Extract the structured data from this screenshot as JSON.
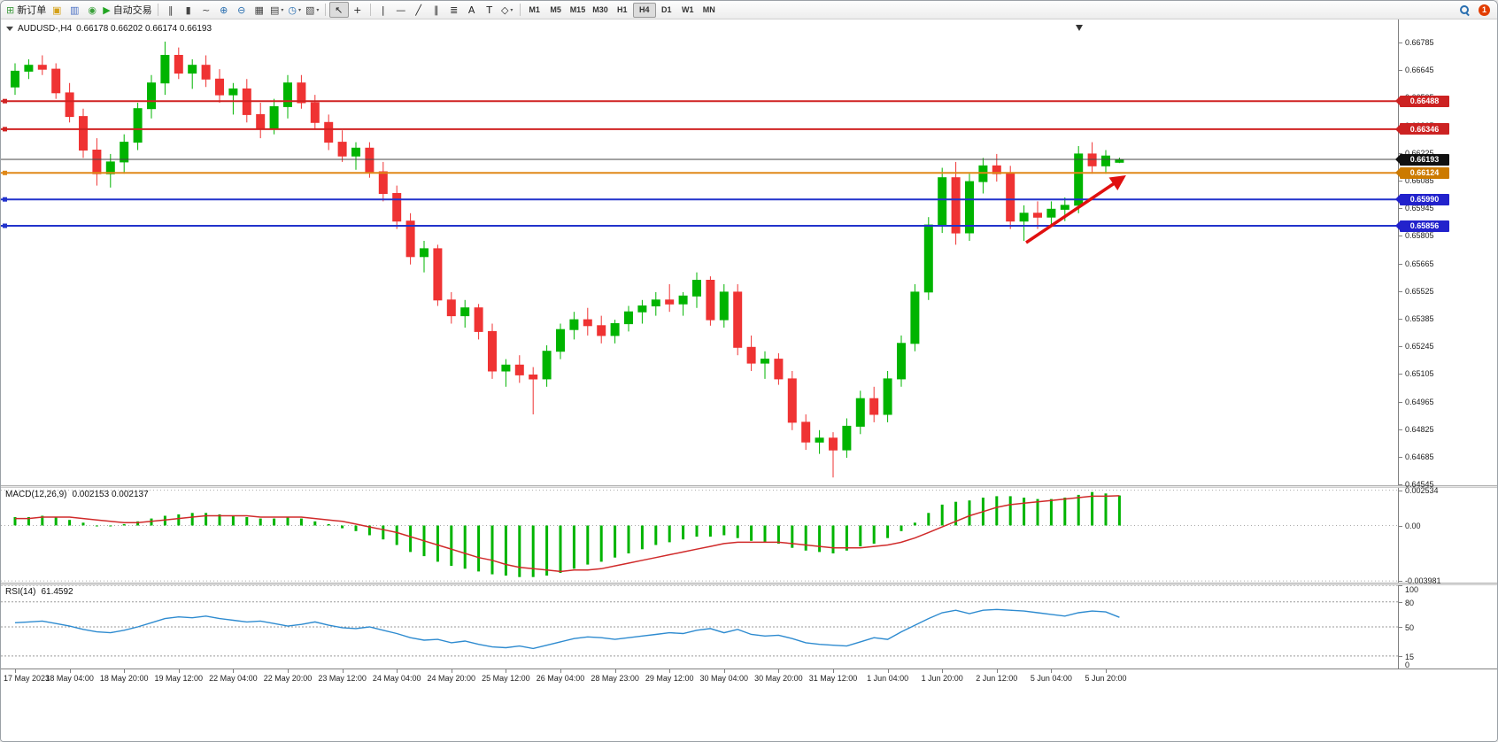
{
  "toolbar": {
    "groups": [
      {
        "items": [
          {
            "name": "new-order-button",
            "glyph": "⊞",
            "color": "#3f9b3f",
            "text": "新订单"
          },
          {
            "name": "profiles-button",
            "glyph": "▣",
            "color": "#d4a017"
          },
          {
            "name": "market-watch-button",
            "glyph": "▥",
            "color": "#4a6fc4"
          },
          {
            "name": "data-window-button",
            "glyph": "◉",
            "color": "#3aa03a"
          },
          {
            "name": "auto-trading-button",
            "glyph": "▶",
            "color": "#22a522",
            "text": "自动交易"
          }
        ]
      },
      {
        "items": [
          {
            "name": "bar-chart-button",
            "glyph": "‖",
            "color": "#444444"
          },
          {
            "name": "candlestick-chart-button",
            "glyph": "▮",
            "color": "#444444"
          },
          {
            "name": "line-chart-button",
            "glyph": "~",
            "color": "#444444"
          },
          {
            "name": "zoom-in-button",
            "glyph": "⊕",
            "color": "#2a6fb0"
          },
          {
            "name": "zoom-out-button",
            "glyph": "⊖",
            "color": "#2a6fb0"
          },
          {
            "name": "tile-windows-button",
            "glyph": "▦",
            "color": "#444444"
          },
          {
            "name": "auto-arrange-button",
            "glyph": "▤",
            "color": "#444444",
            "drop": true
          },
          {
            "name": "period-button",
            "glyph": "◷",
            "color": "#2a6fb0",
            "drop": true
          },
          {
            "name": "templates-button",
            "glyph": "▧",
            "color": "#444444",
            "drop": true
          }
        ]
      },
      {
        "items": [
          {
            "name": "cursor-button",
            "glyph": "↖",
            "color": "#222222",
            "active": true
          },
          {
            "name": "crosshair-button",
            "glyph": "+",
            "color": "#222222"
          }
        ]
      },
      {
        "items": [
          {
            "name": "vertical-line-button",
            "glyph": "|",
            "color": "#222222"
          },
          {
            "name": "horizontal-line-button",
            "glyph": "—",
            "color": "#222222"
          },
          {
            "name": "trendline-button",
            "glyph": "╱",
            "color": "#222222"
          },
          {
            "name": "channel-button",
            "glyph": "∥",
            "color": "#222222"
          },
          {
            "name": "fibonacci-button",
            "glyph": "≣",
            "color": "#222222"
          },
          {
            "name": "text-button",
            "glyph": "A",
            "color": "#222222"
          },
          {
            "name": "text-label-button",
            "glyph": "T",
            "color": "#222222"
          },
          {
            "name": "shapes-button",
            "glyph": "◇",
            "color": "#222222",
            "drop": true
          }
        ]
      },
      {
        "items": [
          {
            "name": "tf-m1-button",
            "tf": true,
            "text2": "M1"
          },
          {
            "name": "tf-m5-button",
            "tf": true,
            "text2": "M5"
          },
          {
            "name": "tf-m15-button",
            "tf": true,
            "text2": "M15"
          },
          {
            "name": "tf-m30-button",
            "tf": true,
            "text2": "M30"
          },
          {
            "name": "tf-h1-button",
            "tf": true,
            "text2": "H1"
          },
          {
            "name": "tf-h4-button",
            "tf": true,
            "text2": "H4",
            "active": true
          },
          {
            "name": "tf-d1-button",
            "tf": true,
            "text2": "D1"
          },
          {
            "name": "tf-w1-button",
            "tf": true,
            "text2": "W1"
          },
          {
            "name": "tf-mn-button",
            "tf": true,
            "text2": "MN"
          }
        ]
      }
    ],
    "notification_count": "1"
  },
  "chart": {
    "title_symbol": "AUDUSD-,H4",
    "title_ohlc": "0.66178 0.66202 0.66174 0.66193"
  },
  "indicators": {
    "macd": {
      "label": "MACD(12,26,9)",
      "values": "0.002153 0.002137"
    },
    "rsi": {
      "label": "RSI(14)",
      "values": "61.4592"
    }
  },
  "chart_data": {
    "type": "candlestick",
    "symbol": "AUDUSD-",
    "timeframe": "H4",
    "current_ohlc": {
      "open": "0.66178",
      "high": "0.66202",
      "low": "0.66174",
      "close": "0.66193"
    },
    "colors": {
      "bull": "#00B400",
      "bear": "#EF3333",
      "macd_hist": "#00B400",
      "macd_signal": "#D02A2A",
      "rsi_line": "#2E8BD0"
    },
    "x_start": 16,
    "x_step": 15.4,
    "body_width": 9,
    "shift_marker_x": 1218,
    "price_axis": {
      "min": 0.64541,
      "max": 0.66902,
      "ticks": [
        0.66785,
        0.66645,
        0.66505,
        0.66365,
        0.66225,
        0.66085,
        0.65945,
        0.65805,
        0.65665,
        0.65525,
        0.65385,
        0.65245,
        0.65105,
        0.64965,
        0.64825,
        0.64685,
        0.64545
      ]
    },
    "hlines": [
      {
        "price": 0.66488,
        "color": "#D02222",
        "width": 2,
        "badge": "0.66488",
        "badge_color": "#CC2222",
        "marker": true
      },
      {
        "price": 0.66346,
        "color": "#D02222",
        "width": 2,
        "badge": "0.66346",
        "badge_color": "#CC2222",
        "marker": true
      },
      {
        "price": 0.66193,
        "color": "#444444",
        "width": 1,
        "badge": "0.66193",
        "badge_color": "#111111",
        "marker": false
      },
      {
        "price": 0.66124,
        "color": "#E08818",
        "width": 2,
        "badge": "0.66124",
        "badge_color": "#CC7A00",
        "marker": true
      },
      {
        "price": 0.6599,
        "color": "#2233CC",
        "width": 2,
        "badge": "0.65990",
        "badge_color": "#2222CC",
        "marker": true
      },
      {
        "price": 0.65856,
        "color": "#2233CC",
        "width": 2,
        "badge": "0.65856",
        "badge_color": "#2222CC",
        "marker": true
      }
    ],
    "arrow": {
      "from": [
        1158,
        252
      ],
      "to": [
        1268,
        178
      ],
      "color": "#E01010",
      "width": 3.5
    },
    "candles": [
      [
        0.6656,
        0.6668,
        0.6652,
        0.6664
      ],
      [
        0.6664,
        0.667,
        0.666,
        0.6667
      ],
      [
        0.6667,
        0.6672,
        0.6662,
        0.6665
      ],
      [
        0.6665,
        0.6668,
        0.665,
        0.6653
      ],
      [
        0.6653,
        0.6658,
        0.6638,
        0.6641
      ],
      [
        0.6641,
        0.6645,
        0.662,
        0.6624
      ],
      [
        0.6624,
        0.663,
        0.6606,
        0.6612
      ],
      [
        0.6612,
        0.6622,
        0.6605,
        0.6618
      ],
      [
        0.6618,
        0.6632,
        0.6612,
        0.6628
      ],
      [
        0.6628,
        0.6648,
        0.6624,
        0.6645
      ],
      [
        0.6645,
        0.6662,
        0.664,
        0.6658
      ],
      [
        0.6658,
        0.6679,
        0.6652,
        0.6672
      ],
      [
        0.6672,
        0.6676,
        0.666,
        0.6663
      ],
      [
        0.6663,
        0.667,
        0.6655,
        0.6667
      ],
      [
        0.6667,
        0.6672,
        0.6656,
        0.666
      ],
      [
        0.666,
        0.6665,
        0.6648,
        0.6652
      ],
      [
        0.6652,
        0.6658,
        0.6642,
        0.6655
      ],
      [
        0.6655,
        0.666,
        0.6638,
        0.6642
      ],
      [
        0.6642,
        0.6648,
        0.663,
        0.6635
      ],
      [
        0.6635,
        0.665,
        0.6632,
        0.6646
      ],
      [
        0.6646,
        0.6662,
        0.664,
        0.6658
      ],
      [
        0.6658,
        0.6662,
        0.6645,
        0.6648
      ],
      [
        0.6648,
        0.6652,
        0.6635,
        0.6638
      ],
      [
        0.6638,
        0.6642,
        0.6624,
        0.6628
      ],
      [
        0.6628,
        0.6634,
        0.6618,
        0.6621
      ],
      [
        0.6621,
        0.6628,
        0.6614,
        0.6625
      ],
      [
        0.6625,
        0.6628,
        0.661,
        0.6613
      ],
      [
        0.6613,
        0.6618,
        0.6598,
        0.6602
      ],
      [
        0.6602,
        0.6606,
        0.6584,
        0.6588
      ],
      [
        0.6588,
        0.6592,
        0.6566,
        0.657
      ],
      [
        0.657,
        0.6578,
        0.6562,
        0.6574
      ],
      [
        0.6574,
        0.6576,
        0.6545,
        0.6548
      ],
      [
        0.6548,
        0.6552,
        0.6536,
        0.654
      ],
      [
        0.654,
        0.6548,
        0.6534,
        0.6544
      ],
      [
        0.6544,
        0.6546,
        0.6528,
        0.6532
      ],
      [
        0.6532,
        0.6536,
        0.6508,
        0.6512
      ],
      [
        0.6512,
        0.6518,
        0.6504,
        0.6515
      ],
      [
        0.6515,
        0.652,
        0.6506,
        0.651
      ],
      [
        0.651,
        0.6514,
        0.649,
        0.6508
      ],
      [
        0.6508,
        0.6525,
        0.6504,
        0.6522
      ],
      [
        0.6522,
        0.6536,
        0.6518,
        0.6533
      ],
      [
        0.6533,
        0.6542,
        0.6528,
        0.6538
      ],
      [
        0.6538,
        0.6544,
        0.653,
        0.6535
      ],
      [
        0.6535,
        0.654,
        0.6526,
        0.653
      ],
      [
        0.653,
        0.6538,
        0.6526,
        0.6536
      ],
      [
        0.6536,
        0.6545,
        0.6532,
        0.6542
      ],
      [
        0.6542,
        0.6548,
        0.6536,
        0.6545
      ],
      [
        0.6545,
        0.6552,
        0.654,
        0.6548
      ],
      [
        0.6548,
        0.6556,
        0.6542,
        0.6546
      ],
      [
        0.6546,
        0.6552,
        0.654,
        0.655
      ],
      [
        0.655,
        0.6562,
        0.6544,
        0.6558
      ],
      [
        0.6558,
        0.656,
        0.6535,
        0.6538
      ],
      [
        0.6538,
        0.6556,
        0.6534,
        0.6552
      ],
      [
        0.6552,
        0.6556,
        0.652,
        0.6524
      ],
      [
        0.6524,
        0.653,
        0.6512,
        0.6516
      ],
      [
        0.6516,
        0.6522,
        0.6508,
        0.6518
      ],
      [
        0.6518,
        0.6521,
        0.6505,
        0.6508
      ],
      [
        0.6508,
        0.6512,
        0.6482,
        0.6486
      ],
      [
        0.6486,
        0.649,
        0.6472,
        0.6476
      ],
      [
        0.6476,
        0.6482,
        0.647,
        0.6478
      ],
      [
        0.6478,
        0.6481,
        0.6458,
        0.6472
      ],
      [
        0.6472,
        0.6488,
        0.6468,
        0.6484
      ],
      [
        0.6484,
        0.6502,
        0.648,
        0.6498
      ],
      [
        0.6498,
        0.6504,
        0.6486,
        0.649
      ],
      [
        0.649,
        0.6512,
        0.6486,
        0.6508
      ],
      [
        0.6508,
        0.653,
        0.6504,
        0.6526
      ],
      [
        0.6526,
        0.6556,
        0.6522,
        0.6552
      ],
      [
        0.6552,
        0.659,
        0.6548,
        0.6586
      ],
      [
        0.6586,
        0.6615,
        0.6582,
        0.661
      ],
      [
        0.661,
        0.6618,
        0.6576,
        0.6582
      ],
      [
        0.6582,
        0.6612,
        0.6578,
        0.6608
      ],
      [
        0.6608,
        0.662,
        0.6602,
        0.6616
      ],
      [
        0.6616,
        0.6622,
        0.6608,
        0.6612
      ],
      [
        0.6612,
        0.6616,
        0.6584,
        0.6588
      ],
      [
        0.6588,
        0.6596,
        0.6578,
        0.6592
      ],
      [
        0.6592,
        0.6598,
        0.6584,
        0.659
      ],
      [
        0.659,
        0.6598,
        0.6586,
        0.6594
      ],
      [
        0.6594,
        0.66,
        0.6588,
        0.6596
      ],
      [
        0.6596,
        0.6626,
        0.6592,
        0.6622
      ],
      [
        0.6622,
        0.6628,
        0.6612,
        0.6616
      ],
      [
        0.6616,
        0.6624,
        0.6612,
        0.6621
      ],
      [
        0.66178,
        0.66202,
        0.66174,
        0.66193
      ]
    ],
    "time_labels": [
      "17 May 2023",
      "18 May 04:00",
      "18 May 20:00",
      "19 May 12:00",
      "22 May 04:00",
      "22 May 20:00",
      "23 May 12:00",
      "24 May 04:00",
      "24 May 20:00",
      "25 May 12:00",
      "26 May 04:00",
      "28 May 23:00",
      "29 May 12:00",
      "30 May 04:00",
      "30 May 20:00",
      "31 May 12:00",
      "1 Jun 04:00",
      "1 Jun 20:00",
      "2 Jun 12:00",
      "5 Jun 04:00",
      "5 Jun 20:00"
    ],
    "macd": {
      "label": "MACD(12,26,9)",
      "values_text": "0.002153 0.002137",
      "max": 0.0027,
      "min": -0.0041,
      "scale_values": [
        0.002534,
        0,
        -0.003981
      ],
      "scale_labels": [
        "0.002534",
        "0.00",
        "-0.003981"
      ],
      "hist": [
        0.0006,
        0.0006,
        0.0007,
        0.0006,
        0.0004,
        0.0002,
        0.0,
        0.0,
        0.0001,
        0.0003,
        0.0005,
        0.0007,
        0.0008,
        0.0009,
        0.0009,
        0.0008,
        0.0007,
        0.0006,
        0.0005,
        0.0005,
        0.0006,
        0.0005,
        0.0003,
        0.0001,
        -0.0002,
        -0.0004,
        -0.0007,
        -0.001,
        -0.0014,
        -0.0019,
        -0.0022,
        -0.0026,
        -0.0029,
        -0.0031,
        -0.0033,
        -0.0035,
        -0.0036,
        -0.0037,
        -0.0037,
        -0.0036,
        -0.0034,
        -0.0031,
        -0.0028,
        -0.0026,
        -0.0023,
        -0.002,
        -0.0017,
        -0.0014,
        -0.0012,
        -0.001,
        -0.0008,
        -0.0008,
        -0.0007,
        -0.0009,
        -0.0011,
        -0.0012,
        -0.0013,
        -0.0016,
        -0.0018,
        -0.0019,
        -0.002,
        -0.0018,
        -0.0015,
        -0.0013,
        -0.0009,
        -0.0004,
        0.0002,
        0.0009,
        0.0015,
        0.0017,
        0.0018,
        0.002,
        0.0021,
        0.0021,
        0.002,
        0.0019,
        0.0019,
        0.002,
        0.0022,
        0.0024,
        0.0023,
        0.002153
      ],
      "signal": [
        0.0005,
        0.0005,
        0.0006,
        0.0006,
        0.0006,
        0.0005,
        0.0004,
        0.0003,
        0.0002,
        0.0002,
        0.0003,
        0.0004,
        0.0005,
        0.0006,
        0.0007,
        0.0007,
        0.0007,
        0.0007,
        0.0006,
        0.0006,
        0.0006,
        0.0006,
        0.0005,
        0.0004,
        0.0003,
        0.0001,
        -0.0001,
        -0.0003,
        -0.0005,
        -0.0008,
        -0.0011,
        -0.0014,
        -0.0017,
        -0.002,
        -0.0023,
        -0.0025,
        -0.0028,
        -0.003,
        -0.0031,
        -0.0032,
        -0.0033,
        -0.0032,
        -0.0032,
        -0.0031,
        -0.0029,
        -0.0027,
        -0.0025,
        -0.0023,
        -0.0021,
        -0.0019,
        -0.0017,
        -0.0015,
        -0.0013,
        -0.0012,
        -0.0012,
        -0.0012,
        -0.0012,
        -0.0013,
        -0.0014,
        -0.0015,
        -0.0016,
        -0.0016,
        -0.0016,
        -0.0015,
        -0.0014,
        -0.0012,
        -0.0009,
        -0.0005,
        -0.0001,
        0.0003,
        0.0007,
        0.001,
        0.0013,
        0.0015,
        0.0016,
        0.0017,
        0.0018,
        0.0019,
        0.002,
        0.0021,
        0.0021,
        0.002137
      ]
    },
    "rsi": {
      "label": "RSI(14)",
      "value_text": "61.4592",
      "levels": [
        {
          "v": 100,
          "label": "100"
        },
        {
          "v": 80,
          "label": "80"
        },
        {
          "v": 50,
          "label": "50"
        },
        {
          "v": 15,
          "label": "15"
        },
        {
          "v": 0,
          "label": "0"
        }
      ],
      "series": [
        55,
        56,
        57,
        54,
        51,
        47,
        44,
        43,
        46,
        50,
        55,
        60,
        62,
        61,
        63,
        60,
        58,
        56,
        57,
        54,
        51,
        53,
        56,
        52,
        49,
        48,
        50,
        46,
        42,
        37,
        34,
        35,
        31,
        33,
        29,
        26,
        25,
        27,
        24,
        28,
        32,
        36,
        38,
        37,
        35,
        37,
        39,
        41,
        43,
        42,
        46,
        48,
        43,
        47,
        41,
        39,
        40,
        36,
        31,
        29,
        28,
        27,
        32,
        37,
        35,
        44,
        52,
        60,
        67,
        70,
        66,
        70,
        71,
        70,
        69,
        67,
        65,
        63,
        67,
        69,
        68,
        61.4592
      ]
    }
  }
}
